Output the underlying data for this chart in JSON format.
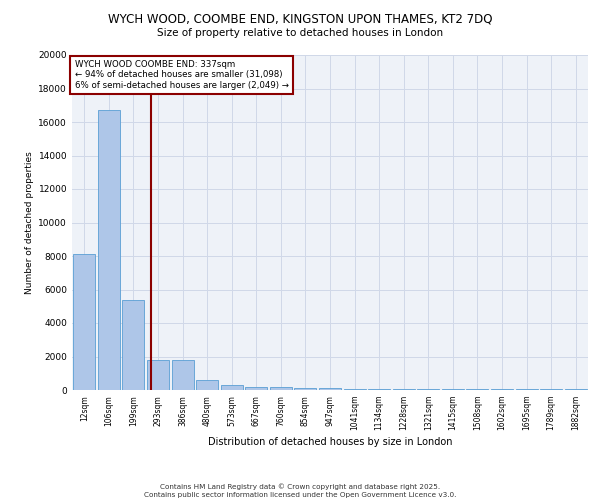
{
  "title_line1": "WYCH WOOD, COOMBE END, KINGSTON UPON THAMES, KT2 7DQ",
  "title_line2": "Size of property relative to detached houses in London",
  "xlabel": "Distribution of detached houses by size in London",
  "ylabel": "Number of detached properties",
  "x_tick_labels": [
    "12sqm",
    "106sqm",
    "199sqm",
    "293sqm",
    "386sqm",
    "480sqm",
    "573sqm",
    "667sqm",
    "760sqm",
    "854sqm",
    "947sqm",
    "1041sqm",
    "1134sqm",
    "1228sqm",
    "1321sqm",
    "1415sqm",
    "1508sqm",
    "1602sqm",
    "1695sqm",
    "1789sqm",
    "1882sqm"
  ],
  "bar_heights": [
    8100,
    16700,
    5400,
    1800,
    1800,
    600,
    300,
    200,
    150,
    100,
    100,
    50,
    50,
    50,
    50,
    50,
    50,
    50,
    50,
    50,
    50
  ],
  "bar_color": "#aec6e8",
  "bar_edge_color": "#5a9fd4",
  "vline_x": 2.72,
  "vline_color": "#8b0000",
  "ylim": [
    0,
    20000
  ],
  "yticks": [
    0,
    2000,
    4000,
    6000,
    8000,
    10000,
    12000,
    14000,
    16000,
    18000,
    20000
  ],
  "annotation_title": "WYCH WOOD COOMBE END: 337sqm",
  "annotation_line1": "← 94% of detached houses are smaller (31,098)",
  "annotation_line2": "6% of semi-detached houses are larger (2,049) →",
  "annotation_box_color": "#8b0000",
  "grid_color": "#d0d8e8",
  "bg_color": "#eef2f8",
  "footer_line1": "Contains HM Land Registry data © Crown copyright and database right 2025.",
  "footer_line2": "Contains public sector information licensed under the Open Government Licence v3.0."
}
